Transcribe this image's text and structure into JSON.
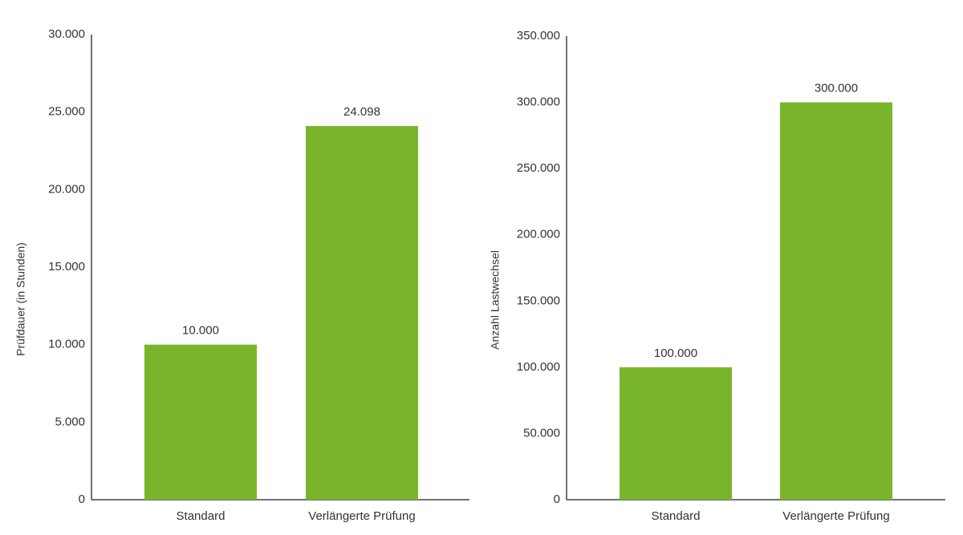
{
  "chart_data": [
    {
      "type": "bar",
      "ylabel": "Prüfdauer (in Stunden)",
      "categories": [
        "Standard",
        "Verlängerte Prüfung"
      ],
      "values": [
        10000,
        24098
      ],
      "value_labels": [
        "10.000",
        "24.098"
      ],
      "color": "#78b52a",
      "ylim": [
        0,
        30000
      ],
      "yticks": [
        0,
        {
          "value": 5000,
          "label": "5.000"
        },
        {
          "value": 10000,
          "label": "10.000"
        },
        {
          "value": 15000,
          "label": "15.000"
        },
        {
          "value": 20000,
          "label": "20.000"
        },
        {
          "value": 25000,
          "label": "25.000"
        },
        {
          "value": 30000,
          "label": "30.000"
        }
      ],
      "grid": false
    },
    {
      "type": "bar",
      "ylabel": "Anzahl Lastwechsel",
      "categories": [
        "Standard",
        "Verlängerte Prüfung"
      ],
      "values": [
        100000,
        300000
      ],
      "value_labels": [
        "100.000",
        "300.000"
      ],
      "color": "#78b52a",
      "ylim": [
        0,
        350000
      ],
      "yticks": [
        0,
        {
          "value": 50000,
          "label": "50.000"
        },
        {
          "value": 100000,
          "label": "100.000"
        },
        {
          "value": 150000,
          "label": "150.000"
        },
        {
          "value": 200000,
          "label": "200.000"
        },
        {
          "value": 250000,
          "label": "250.000"
        },
        {
          "value": 300000,
          "label": "300.000"
        },
        {
          "value": 350000,
          "label": "350.000"
        }
      ],
      "grid": false
    }
  ]
}
